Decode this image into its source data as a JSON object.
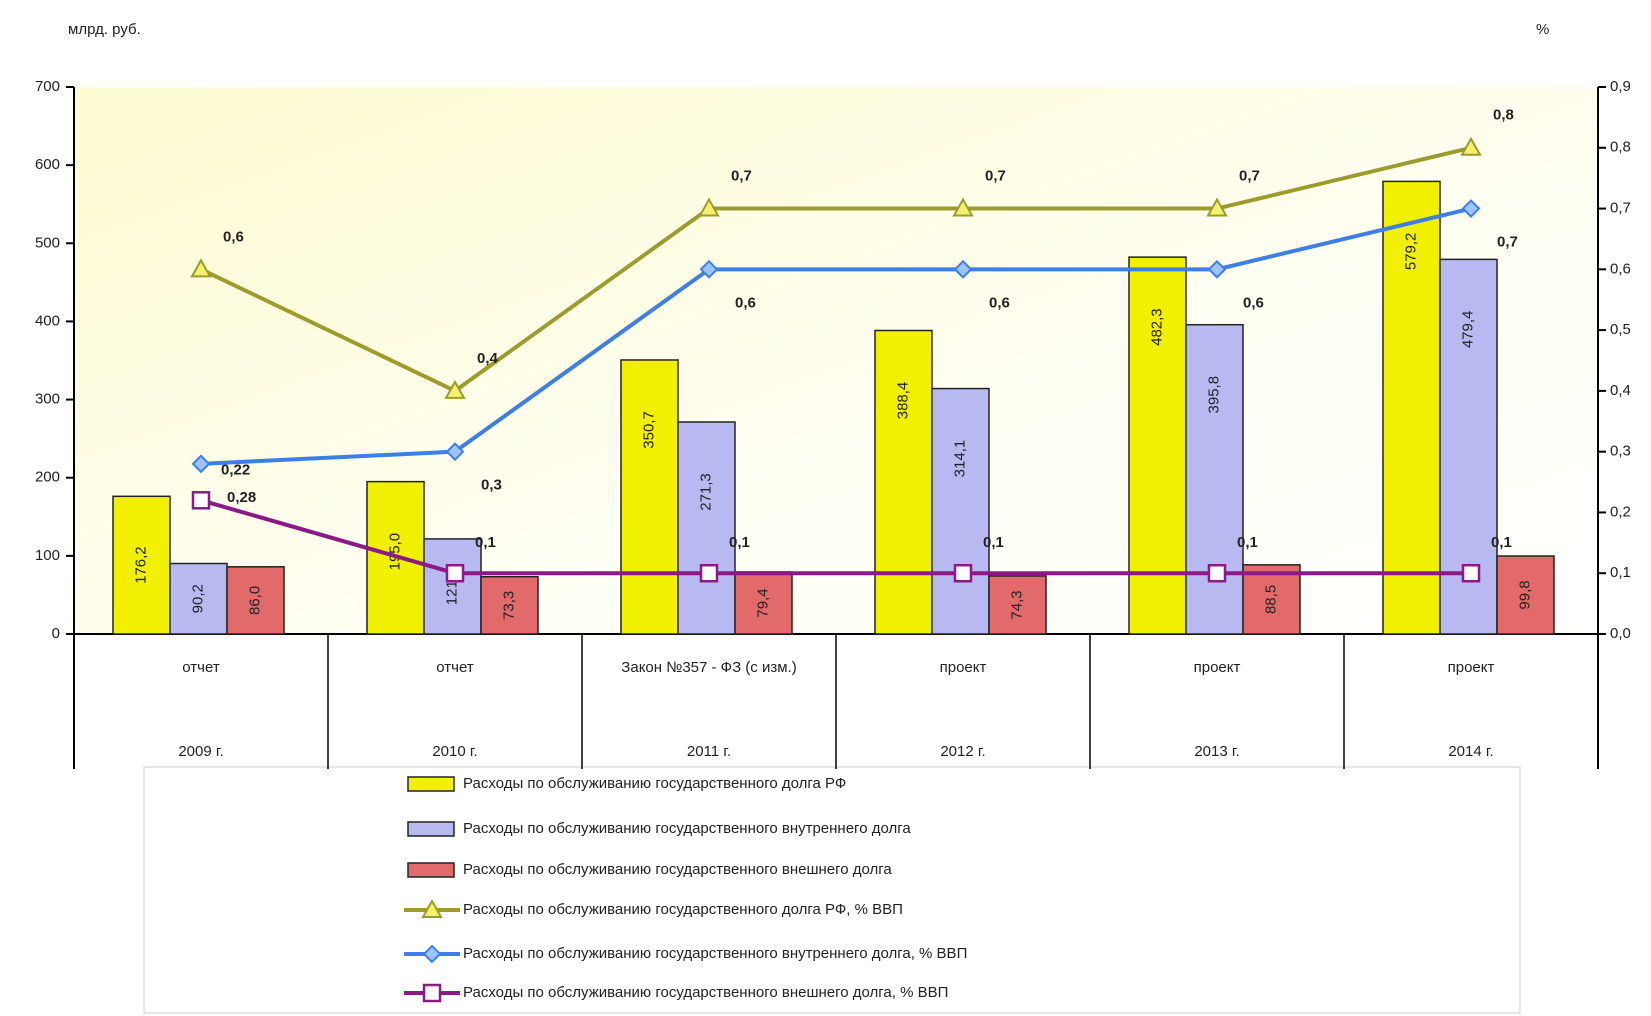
{
  "chart_data": {
    "type": "bar",
    "y_label": "млрд. руб.",
    "y2_label": "%",
    "categories": [
      "2009 г.",
      "2010 г.",
      "2011 г.",
      "2012 г.",
      "2013 г.",
      "2014 г."
    ],
    "subcategories": [
      "отчет",
      "отчет",
      "Закон №357 - ФЗ (с изм.)",
      "проект",
      "проект",
      "проект"
    ],
    "ylim": [
      0,
      700
    ],
    "yticks": [
      0,
      100,
      200,
      300,
      400,
      500,
      600,
      700
    ],
    "y2lim": [
      0,
      0.9
    ],
    "y2ticks": [
      {
        "value": 0,
        "label": "0,0"
      },
      {
        "value": 0.1,
        "label": "0,1"
      },
      {
        "value": 0.2,
        "label": "0,2"
      },
      {
        "value": 0.3,
        "label": "0,3"
      },
      {
        "value": 0.4,
        "label": "0,4"
      },
      {
        "value": 0.5,
        "label": "0,5"
      },
      {
        "value": 0.6,
        "label": "0,6"
      },
      {
        "value": 0.7,
        "label": "0,7"
      },
      {
        "value": 0.8,
        "label": "0,8"
      },
      {
        "value": 0.9,
        "label": "0,9"
      }
    ],
    "series": [
      {
        "name": "Расходы по обслуживанию государственного долга РФ",
        "type": "bar",
        "color": "#f0f000",
        "values": [
          176.2,
          195.0,
          350.7,
          388.4,
          482.3,
          579.2
        ],
        "value_labels": [
          "176,2",
          "195,0",
          "350,7",
          "388,4",
          "482,3",
          "579,2"
        ]
      },
      {
        "name": "Расходы по обслуживанию государственного внутреннего долга",
        "type": "bar",
        "color": "#b9b9f2",
        "values": [
          90.2,
          121.7,
          271.3,
          314.1,
          395.8,
          479.4
        ],
        "value_labels": [
          "90,2",
          "121,7",
          "271,3",
          "314,1",
          "395,8",
          "479,4"
        ]
      },
      {
        "name": "Расходы по  обслуживанию государственного внешнего долга",
        "type": "bar",
        "color": "#e26a6a",
        "values": [
          86.0,
          73.3,
          79.4,
          74.3,
          88.5,
          99.8
        ],
        "value_labels": [
          "86,0",
          "73,3",
          "79,4",
          "74,3",
          "88,5",
          "99,8"
        ]
      },
      {
        "name": "Расходы по обслуживанию государственного долга РФ, %  ВВП",
        "type": "line",
        "axis": "y2",
        "color": "#9c9c2c",
        "marker": "triangle",
        "values": [
          0.6,
          0.4,
          0.7,
          0.7,
          0.7,
          0.8
        ],
        "value_labels": [
          "0,6",
          "0,4",
          "0,7",
          "0,7",
          "0,7",
          "0,8"
        ]
      },
      {
        "name": "Расходы по  обслуживанию государственного внутреннего долга,  %  ВВП",
        "type": "line",
        "axis": "y2",
        "color": "#3d7fe6",
        "marker": "diamond",
        "values": [
          0.28,
          0.3,
          0.6,
          0.6,
          0.6,
          0.7
        ],
        "value_labels": [
          "0,28",
          "0,3",
          "0,6",
          "0,6",
          "0,6",
          "0,7"
        ]
      },
      {
        "name": "Расходы по  обслуживанию государственного внешнего долга, %  ВВП",
        "type": "line",
        "axis": "y2",
        "color": "#8a1a86",
        "marker": "square",
        "values": [
          0.22,
          0.1,
          0.1,
          0.1,
          0.1,
          0.1
        ],
        "value_labels": [
          "0,22",
          "0,1",
          "0,1",
          "0,1",
          "0,1",
          "0,1"
        ]
      }
    ]
  }
}
